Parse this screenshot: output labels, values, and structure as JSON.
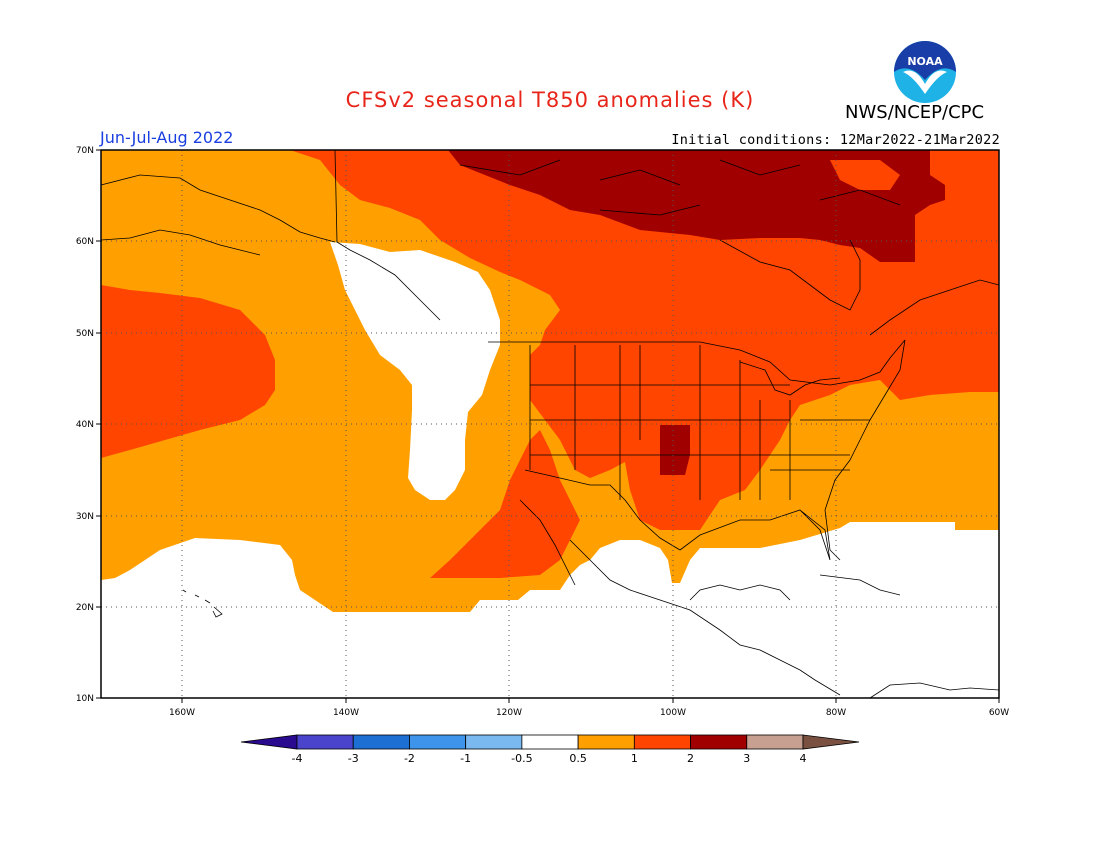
{
  "title": "CFSv2 seasonal T850 anomalies (K)",
  "agency": "NWS/NCEP/CPC",
  "logo_text": "NOAA",
  "season": "Jun-Jul-Aug 2022",
  "initial_conditions": "Initial conditions: 12Mar2022-21Mar2022",
  "lat_labels": [
    "70N",
    "60N",
    "50N",
    "40N",
    "30N",
    "20N",
    "10N"
  ],
  "lon_labels": [
    "160W",
    "140W",
    "120W",
    "100W",
    "80W",
    "60W"
  ],
  "colorbar": {
    "labels": [
      "-4",
      "-3",
      "-2",
      "-1",
      "-0.5",
      "0.5",
      "1",
      "2",
      "3",
      "4"
    ],
    "colors": [
      "#2a0a8f",
      "#4a44cc",
      "#1e6fd4",
      "#3d94ea",
      "#7ab8f0",
      "#ffffff",
      "#ffa000",
      "#ff4500",
      "#a00000",
      "#c8a091",
      "#7a5040"
    ]
  },
  "legend_colors": {
    "0.5-1": "#ffa000",
    "1-2": "#ff4500",
    "2-3": "#a00000",
    "-0.5-0.5": "#ffffff"
  }
}
